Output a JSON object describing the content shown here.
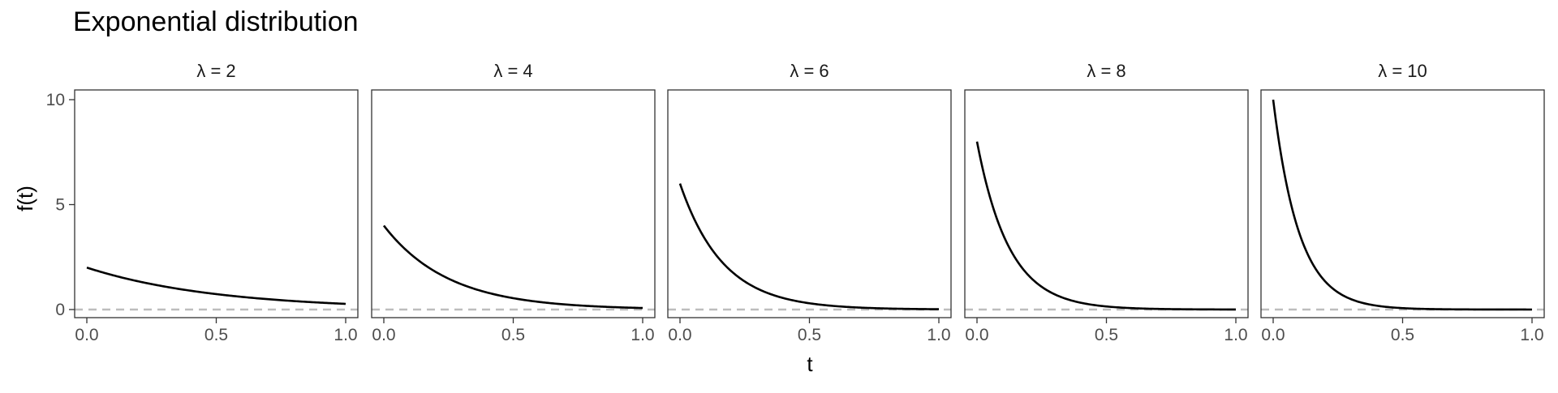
{
  "chart_data": {
    "type": "line",
    "title": "Exponential distribution",
    "xlabel": "t",
    "ylabel": "f(t)",
    "xlim": [
      0,
      1
    ],
    "ylim": [
      0,
      10
    ],
    "x_ticks": [
      "0.0",
      "0.5",
      "1.0"
    ],
    "y_ticks": [
      "0",
      "5",
      "10"
    ],
    "x_tick_values": [
      0,
      0.5,
      1.0
    ],
    "y_tick_values": [
      0,
      5,
      10
    ],
    "grid": false,
    "reference_line": {
      "y": 0,
      "style": "dashed",
      "color": "#bdbdbd"
    },
    "line_color": "#000000",
    "facets": [
      {
        "label": "λ = 2",
        "lambda": 2
      },
      {
        "label": "λ = 4",
        "lambda": 4
      },
      {
        "label": "λ = 6",
        "lambda": 6
      },
      {
        "label": "λ = 8",
        "lambda": 8
      },
      {
        "label": "λ = 10",
        "lambda": 10
      }
    ]
  }
}
